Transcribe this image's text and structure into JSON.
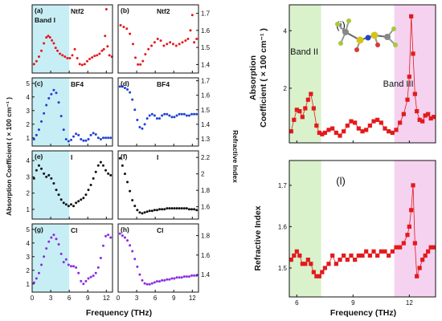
{
  "colors": {
    "red": "#e31a1c",
    "blue": "#1f3fd9",
    "black": "#111111",
    "purple": "#8a2be2",
    "band_cyan": "#c8eef5",
    "band_green": "#d9f2cc",
    "band_pink": "#f5d2f0"
  },
  "text": {
    "left_ylabel": "Absorption Coefficient ( × 100 cm⁻¹ )",
    "left_ylabel_right": "Refractive Index",
    "left_xlabel": "Frequency (THz)",
    "right_top_ylabel_1": "Absorption",
    "right_top_ylabel_2": "Coefficient ( × 100 cm⁻¹ )",
    "right_bottom_ylabel": "Refractive Index",
    "right_xlabel": "Frequency (THz)"
  },
  "chart_data": [
    {
      "id": "a",
      "panel_label": "(a)",
      "tag": "Ntf2",
      "band_label": "Band I",
      "type": "scatter",
      "color": "red",
      "xlim": [
        0,
        13
      ],
      "ylim": [
        0,
        4.6
      ],
      "yticks": [],
      "xticks": [
        0,
        3,
        6,
        9,
        12
      ],
      "x": [
        0.3,
        0.7,
        1.1,
        1.5,
        1.9,
        2.3,
        2.6,
        2.9,
        3.2,
        3.5,
        3.8,
        4.1,
        4.5,
        4.9,
        5.3,
        5.7,
        6.1,
        6.5,
        6.9,
        7.3,
        7.7,
        8.1,
        8.5,
        8.9,
        9.3,
        9.7,
        10.1,
        10.5,
        10.9,
        11.3,
        11.6,
        11.8,
        12.0,
        12.2,
        12.5,
        12.9
      ],
      "y": [
        0.6,
        0.8,
        1.1,
        1.5,
        2.0,
        2.4,
        2.5,
        2.4,
        2.2,
        2.0,
        1.7,
        1.5,
        1.3,
        1.2,
        1.1,
        1.0,
        1.0,
        1.2,
        1.6,
        1.0,
        0.6,
        0.55,
        0.6,
        0.8,
        0.95,
        1.05,
        1.15,
        1.2,
        1.3,
        1.5,
        1.6,
        2.5,
        4.3,
        1.8,
        1.2,
        1.1
      ]
    },
    {
      "id": "b",
      "panel_label": "(b)",
      "tag": "Ntf2",
      "type": "scatter",
      "color": "red",
      "xlim": [
        0,
        13
      ],
      "ylim": [
        1.35,
        1.75
      ],
      "yticks": [
        1.4,
        1.5,
        1.6,
        1.7
      ],
      "xticks": [
        0,
        3,
        6,
        9,
        12
      ],
      "x": [
        0.4,
        0.9,
        1.4,
        1.9,
        2.4,
        2.8,
        3.2,
        3.6,
        4.0,
        4.4,
        4.9,
        5.4,
        5.9,
        6.4,
        6.9,
        7.4,
        7.9,
        8.4,
        8.9,
        9.4,
        9.9,
        10.4,
        10.9,
        11.3,
        11.7,
        12.0,
        12.3,
        12.7
      ],
      "y": [
        1.63,
        1.62,
        1.61,
        1.58,
        1.52,
        1.44,
        1.4,
        1.4,
        1.42,
        1.46,
        1.49,
        1.51,
        1.53,
        1.55,
        1.54,
        1.51,
        1.52,
        1.53,
        1.52,
        1.51,
        1.52,
        1.53,
        1.54,
        1.55,
        1.6,
        1.69,
        1.53,
        1.55
      ]
    },
    {
      "id": "c",
      "panel_label": "(c)",
      "tag": "BF4",
      "type": "scatter",
      "color": "blue",
      "xlim": [
        0,
        13
      ],
      "ylim": [
        0.4,
        5.4
      ],
      "yticks": [
        1,
        2,
        3,
        4,
        5
      ],
      "xticks": [
        0,
        3,
        6,
        9,
        12
      ],
      "x": [
        0.3,
        0.7,
        1.1,
        1.5,
        1.9,
        2.3,
        2.7,
        3.1,
        3.5,
        3.9,
        4.3,
        4.7,
        5.1,
        5.5,
        5.9,
        6.3,
        6.7,
        7.1,
        7.5,
        7.9,
        8.3,
        8.7,
        9.1,
        9.5,
        9.9,
        10.3,
        10.7,
        11.1,
        11.5,
        11.9,
        12.3,
        12.7
      ],
      "y": [
        0.9,
        1.2,
        1.6,
        2.2,
        2.8,
        3.4,
        3.9,
        4.2,
        4.5,
        4.3,
        3.6,
        2.6,
        1.6,
        0.9,
        0.75,
        0.85,
        1.1,
        1.3,
        1.2,
        0.9,
        0.8,
        0.8,
        0.9,
        1.2,
        1.35,
        1.25,
        1.0,
        0.9,
        1.0,
        1.0,
        1.0,
        1.0
      ]
    },
    {
      "id": "d",
      "panel_label": "(d)",
      "tag": "BF4",
      "type": "scatter",
      "color": "blue",
      "xlim": [
        0,
        13
      ],
      "ylim": [
        1.25,
        1.72
      ],
      "yticks": [
        1.3,
        1.4,
        1.5,
        1.6,
        1.7
      ],
      "xticks": [
        0,
        3,
        6,
        9,
        12
      ],
      "x": [
        0.3,
        0.7,
        1.1,
        1.5,
        1.9,
        2.3,
        2.7,
        3.1,
        3.5,
        3.9,
        4.3,
        4.7,
        5.1,
        5.5,
        5.9,
        6.3,
        6.7,
        7.1,
        7.5,
        7.9,
        8.3,
        8.7,
        9.1,
        9.5,
        9.9,
        10.3,
        10.7,
        11.1,
        11.5,
        11.9,
        12.3,
        12.7
      ],
      "y": [
        1.66,
        1.66,
        1.65,
        1.64,
        1.62,
        1.57,
        1.5,
        1.43,
        1.38,
        1.37,
        1.4,
        1.44,
        1.46,
        1.47,
        1.46,
        1.44,
        1.44,
        1.46,
        1.47,
        1.47,
        1.46,
        1.45,
        1.45,
        1.46,
        1.47,
        1.47,
        1.47,
        1.46,
        1.46,
        1.47,
        1.47,
        1.47
      ]
    },
    {
      "id": "e",
      "panel_label": "(e)",
      "tag": "I",
      "type": "scatter",
      "color": "black",
      "xlim": [
        0,
        13
      ],
      "ylim": [
        0.4,
        4.6
      ],
      "yticks": [
        1,
        2,
        3,
        4
      ],
      "xticks": [
        0,
        3,
        6,
        9,
        12
      ],
      "x": [
        0.3,
        0.7,
        1.1,
        1.5,
        1.9,
        2.3,
        2.7,
        3.1,
        3.5,
        3.9,
        4.3,
        4.7,
        5.1,
        5.5,
        5.9,
        6.3,
        6.7,
        7.1,
        7.5,
        7.9,
        8.3,
        8.7,
        9.1,
        9.5,
        9.9,
        10.3,
        10.7,
        11.1,
        11.5,
        11.9,
        12.3,
        12.7
      ],
      "y": [
        2.9,
        3.4,
        3.7,
        3.5,
        3.2,
        3.0,
        3.1,
        2.9,
        2.6,
        2.2,
        1.9,
        1.6,
        1.4,
        1.3,
        1.2,
        1.3,
        1.2,
        1.4,
        1.5,
        1.6,
        1.7,
        1.9,
        2.2,
        2.5,
        2.9,
        3.3,
        3.7,
        3.9,
        3.7,
        3.4,
        3.2,
        3.1
      ]
    },
    {
      "id": "f",
      "panel_label": "(f)",
      "tag": "I",
      "type": "scatter",
      "color": "black",
      "xlim": [
        0,
        13
      ],
      "ylim": [
        1.45,
        2.28
      ],
      "yticks": [
        1.6,
        1.8,
        2.0,
        2.2
      ],
      "xticks": [
        0,
        3,
        6,
        9,
        12
      ],
      "x": [
        0.3,
        0.7,
        1.1,
        1.5,
        1.9,
        2.3,
        2.7,
        3.1,
        3.5,
        3.9,
        4.3,
        4.7,
        5.1,
        5.5,
        5.9,
        6.3,
        6.7,
        7.1,
        7.5,
        7.9,
        8.3,
        8.7,
        9.1,
        9.5,
        9.9,
        10.3,
        10.7,
        11.1,
        11.5,
        11.9,
        12.3,
        12.7
      ],
      "y": [
        2.19,
        2.1,
        2.0,
        1.9,
        1.79,
        1.68,
        1.61,
        1.56,
        1.53,
        1.52,
        1.53,
        1.54,
        1.55,
        1.55,
        1.56,
        1.56,
        1.57,
        1.57,
        1.57,
        1.58,
        1.58,
        1.58,
        1.58,
        1.58,
        1.58,
        1.58,
        1.58,
        1.58,
        1.57,
        1.57,
        1.57,
        1.56
      ]
    },
    {
      "id": "g",
      "panel_label": "(g)",
      "tag": "Cl",
      "type": "scatter",
      "color": "purple",
      "xlim": [
        0,
        13
      ],
      "ylim": [
        0.4,
        5.4
      ],
      "yticks": [
        1,
        2,
        3,
        4,
        5
      ],
      "xticks": [
        0,
        3,
        6,
        9,
        12
      ],
      "x": [
        0.3,
        0.7,
        1.1,
        1.5,
        1.9,
        2.3,
        2.7,
        3.1,
        3.5,
        3.9,
        4.3,
        4.7,
        5.1,
        5.5,
        5.9,
        6.3,
        6.7,
        7.1,
        7.5,
        7.9,
        8.3,
        8.7,
        9.1,
        9.5,
        9.9,
        10.3,
        10.7,
        11.1,
        11.5,
        11.9,
        12.3,
        12.7
      ],
      "y": [
        1.1,
        1.4,
        1.8,
        2.4,
        3.0,
        3.6,
        4.1,
        4.4,
        4.6,
        4.3,
        3.9,
        3.2,
        2.6,
        2.8,
        2.4,
        2.3,
        2.3,
        2.2,
        1.8,
        1.2,
        1.0,
        1.2,
        1.4,
        1.5,
        1.6,
        1.8,
        2.2,
        2.9,
        3.8,
        4.5,
        4.6,
        4.4
      ]
    },
    {
      "id": "h",
      "panel_label": "(h)",
      "tag": "Cl",
      "type": "scatter",
      "color": "purple",
      "xlim": [
        0,
        13
      ],
      "ylim": [
        1.22,
        1.92
      ],
      "yticks": [
        1.4,
        1.6,
        1.8
      ],
      "xticks": [
        0,
        3,
        6,
        9,
        12
      ],
      "x": [
        0.3,
        0.7,
        1.1,
        1.5,
        1.9,
        2.3,
        2.7,
        3.1,
        3.5,
        3.9,
        4.3,
        4.7,
        5.1,
        5.5,
        5.9,
        6.3,
        6.7,
        7.1,
        7.5,
        7.9,
        8.3,
        8.7,
        9.1,
        9.5,
        9.9,
        10.3,
        10.7,
        11.1,
        11.5,
        11.9,
        12.3,
        12.7
      ],
      "y": [
        1.82,
        1.8,
        1.78,
        1.75,
        1.7,
        1.64,
        1.56,
        1.48,
        1.4,
        1.34,
        1.31,
        1.3,
        1.3,
        1.31,
        1.32,
        1.33,
        1.33,
        1.34,
        1.34,
        1.35,
        1.35,
        1.36,
        1.36,
        1.37,
        1.37,
        1.37,
        1.38,
        1.38,
        1.38,
        1.39,
        1.39,
        1.39
      ]
    },
    {
      "id": "i",
      "panel_label": "(i)",
      "band_labels": [
        "Band II",
        "Band III"
      ],
      "type": "line",
      "color": "red",
      "xlim": [
        5.6,
        13.4
      ],
      "ylim": [
        0.1,
        4.9
      ],
      "yticks": [
        2,
        4
      ],
      "xticks": [
        6,
        9,
        12
      ],
      "x": [
        5.7,
        5.85,
        6.0,
        6.15,
        6.3,
        6.45,
        6.6,
        6.75,
        6.9,
        7.05,
        7.2,
        7.35,
        7.5,
        7.7,
        7.9,
        8.1,
        8.3,
        8.5,
        8.7,
        8.9,
        9.1,
        9.3,
        9.5,
        9.7,
        9.9,
        10.1,
        10.3,
        10.5,
        10.7,
        10.9,
        11.1,
        11.3,
        11.5,
        11.7,
        11.9,
        12.0,
        12.1,
        12.2,
        12.3,
        12.4,
        12.55,
        12.7,
        12.85,
        13.0,
        13.15,
        13.3
      ],
      "y": [
        0.5,
        0.9,
        1.25,
        1.2,
        1.0,
        1.3,
        1.6,
        1.8,
        1.3,
        0.7,
        0.45,
        0.4,
        0.45,
        0.55,
        0.6,
        0.45,
        0.35,
        0.5,
        0.7,
        0.85,
        0.8,
        0.6,
        0.5,
        0.55,
        0.7,
        0.85,
        0.9,
        0.8,
        0.6,
        0.5,
        0.45,
        0.55,
        0.8,
        1.1,
        1.6,
        2.4,
        4.5,
        3.2,
        1.8,
        1.2,
        0.9,
        0.85,
        1.05,
        1.1,
        0.95,
        1.0
      ]
    },
    {
      "id": "l",
      "panel_label": "(l)",
      "type": "line",
      "color": "red",
      "xlim": [
        5.6,
        13.4
      ],
      "ylim": [
        1.43,
        1.76
      ],
      "yticks": [
        1.5,
        1.6,
        1.7
      ],
      "xticks": [
        6,
        9,
        12
      ],
      "x": [
        5.7,
        5.85,
        6.0,
        6.15,
        6.3,
        6.45,
        6.6,
        6.75,
        6.9,
        7.05,
        7.2,
        7.35,
        7.5,
        7.7,
        7.9,
        8.1,
        8.3,
        8.5,
        8.7,
        8.9,
        9.1,
        9.3,
        9.5,
        9.7,
        9.9,
        10.1,
        10.3,
        10.5,
        10.7,
        10.9,
        11.1,
        11.3,
        11.5,
        11.7,
        11.9,
        12.0,
        12.1,
        12.2,
        12.3,
        12.4,
        12.55,
        12.7,
        12.85,
        13.0,
        13.15,
        13.3
      ],
      "y": [
        1.52,
        1.53,
        1.54,
        1.53,
        1.51,
        1.51,
        1.52,
        1.51,
        1.49,
        1.48,
        1.48,
        1.49,
        1.5,
        1.51,
        1.53,
        1.51,
        1.52,
        1.53,
        1.52,
        1.53,
        1.52,
        1.53,
        1.53,
        1.54,
        1.53,
        1.54,
        1.53,
        1.54,
        1.54,
        1.53,
        1.54,
        1.55,
        1.55,
        1.56,
        1.58,
        1.6,
        1.64,
        1.7,
        1.56,
        1.48,
        1.5,
        1.52,
        1.53,
        1.54,
        1.55,
        1.55
      ]
    }
  ]
}
